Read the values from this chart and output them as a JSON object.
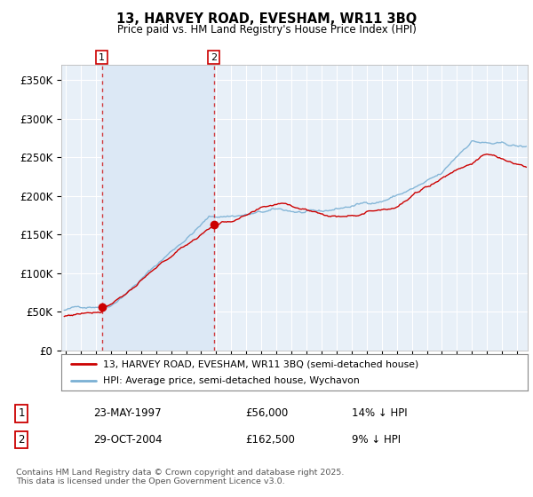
{
  "title": "13, HARVEY ROAD, EVESHAM, WR11 3BQ",
  "subtitle": "Price paid vs. HM Land Registry's House Price Index (HPI)",
  "ylabel_ticks": [
    "£0",
    "£50K",
    "£100K",
    "£150K",
    "£200K",
    "£250K",
    "£300K",
    "£350K"
  ],
  "ytick_values": [
    0,
    50000,
    100000,
    150000,
    200000,
    250000,
    300000,
    350000
  ],
  "ylim": [
    0,
    370000
  ],
  "xlim_start": 1994.7,
  "xlim_end": 2025.7,
  "legend_line1": "13, HARVEY ROAD, EVESHAM, WR11 3BQ (semi-detached house)",
  "legend_line2": "HPI: Average price, semi-detached house, Wychavon",
  "sale1_date": "23-MAY-1997",
  "sale1_price": "£56,000",
  "sale1_hpi": "14% ↓ HPI",
  "sale1_x": 1997.39,
  "sale1_y": 56000,
  "sale2_date": "29-OCT-2004",
  "sale2_price": "£162,500",
  "sale2_hpi": "9% ↓ HPI",
  "sale2_x": 2004.83,
  "sale2_y": 162500,
  "red_color": "#cc0000",
  "blue_color": "#7ab0d4",
  "blue_fill": "#d6e8f5",
  "highlight_fill": "#dce8f5",
  "background_color": "#e8f0f8",
  "grid_color": "#ffffff",
  "footnote": "Contains HM Land Registry data © Crown copyright and database right 2025.\nThis data is licensed under the Open Government Licence v3.0."
}
